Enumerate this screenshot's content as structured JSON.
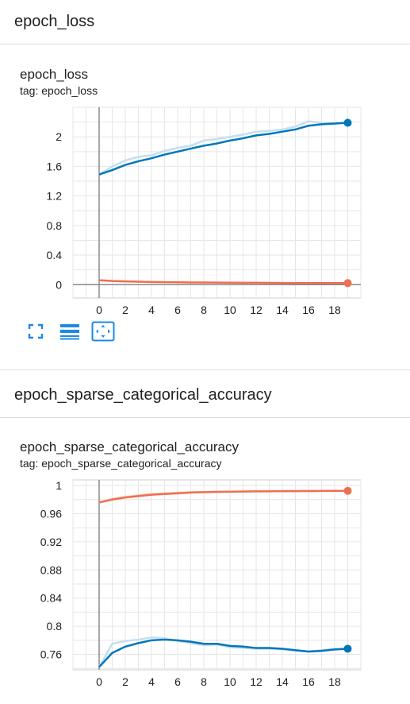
{
  "sections": [
    {
      "header": "epoch_loss",
      "card_title": "epoch_loss",
      "card_tag": "tag: epoch_loss",
      "toolbar": {
        "fullscreen_icon": "fullscreen-icon",
        "data_table_icon": "data-table-icon",
        "fit_domain_icon": "fit-domain-icon"
      }
    },
    {
      "header": "epoch_sparse_categorical_accuracy",
      "card_title": "epoch_sparse_categorical_accuracy",
      "card_tag": "tag: epoch_sparse_categorical_accuracy"
    }
  ],
  "colors": {
    "train": "#0077bb",
    "train_raw": "#c6dff0",
    "validation": "#ee7050",
    "validation_raw": "#f8cbbd",
    "accent_icon": "#1e88e5"
  },
  "chart_data": [
    {
      "type": "line",
      "title": "epoch_loss",
      "xlim": [
        -2,
        20
      ],
      "ylim": [
        -0.18,
        2.4
      ],
      "xticks": [
        "0",
        "2",
        "4",
        "6",
        "8",
        "10",
        "12",
        "14",
        "16",
        "18"
      ],
      "yticks": [
        "0",
        "0.4",
        "0.8",
        "1.2",
        "1.6",
        "2"
      ],
      "xtick_values": [
        0,
        2,
        4,
        6,
        8,
        10,
        12,
        14,
        16,
        18
      ],
      "ytick_values": [
        0,
        0.4,
        0.8,
        1.2,
        1.6,
        2
      ],
      "x": [
        0,
        1,
        2,
        3,
        4,
        5,
        6,
        7,
        8,
        9,
        10,
        11,
        12,
        13,
        14,
        15,
        16,
        17,
        18,
        19
      ],
      "series": [
        {
          "color_key": "train",
          "values": [
            1.49,
            1.55,
            1.62,
            1.67,
            1.71,
            1.76,
            1.8,
            1.84,
            1.88,
            1.91,
            1.95,
            1.98,
            2.02,
            2.04,
            2.07,
            2.1,
            2.15,
            2.17,
            2.18,
            2.19
          ],
          "raw": [
            1.49,
            1.6,
            1.68,
            1.73,
            1.75,
            1.81,
            1.85,
            1.88,
            1.95,
            1.97,
            2.0,
            2.03,
            2.07,
            2.08,
            2.1,
            2.14,
            2.21,
            2.19,
            2.18,
            2.19
          ]
        },
        {
          "color_key": "validation",
          "values": [
            0.06,
            0.05,
            0.045,
            0.04,
            0.037,
            0.034,
            0.032,
            0.03,
            0.029,
            0.028,
            0.027,
            0.026,
            0.025,
            0.024,
            0.023,
            0.022,
            0.022,
            0.021,
            0.021,
            0.021
          ],
          "raw": [
            0.06,
            0.048,
            0.043,
            0.039,
            0.036,
            0.033,
            0.031,
            0.029,
            0.028,
            0.027,
            0.026,
            0.025,
            0.024,
            0.023,
            0.022,
            0.022,
            0.021,
            0.021,
            0.021,
            0.021
          ]
        }
      ]
    },
    {
      "type": "line",
      "title": "epoch_sparse_categorical_accuracy",
      "xlim": [
        -2,
        20
      ],
      "ylim": [
        0.738,
        1.008
      ],
      "xticks": [
        "0",
        "2",
        "4",
        "6",
        "8",
        "10",
        "12",
        "14",
        "16",
        "18"
      ],
      "yticks": [
        "0.76",
        "0.8",
        "0.84",
        "0.88",
        "0.92",
        "0.96",
        "1"
      ],
      "xtick_values": [
        0,
        2,
        4,
        6,
        8,
        10,
        12,
        14,
        16,
        18
      ],
      "ytick_values": [
        0.76,
        0.8,
        0.84,
        0.88,
        0.92,
        0.96,
        1.0
      ],
      "x": [
        0,
        1,
        2,
        3,
        4,
        5,
        6,
        7,
        8,
        9,
        10,
        11,
        12,
        13,
        14,
        15,
        16,
        17,
        18,
        19
      ],
      "series": [
        {
          "color_key": "validation",
          "values": [
            0.976,
            0.98,
            0.983,
            0.985,
            0.987,
            0.988,
            0.989,
            0.99,
            0.9905,
            0.991,
            0.9912,
            0.9915,
            0.9917,
            0.9918,
            0.992,
            0.9921,
            0.9922,
            0.9923,
            0.9924,
            0.9925
          ],
          "raw": [
            0.976,
            0.981,
            0.984,
            0.986,
            0.988,
            0.989,
            0.99,
            0.9905,
            0.991,
            0.9912,
            0.9914,
            0.9916,
            0.9918,
            0.992,
            0.9921,
            0.9922,
            0.9923,
            0.9924,
            0.9925,
            0.9925
          ]
        },
        {
          "color_key": "train",
          "values": [
            0.742,
            0.762,
            0.771,
            0.776,
            0.78,
            0.781,
            0.78,
            0.778,
            0.775,
            0.775,
            0.772,
            0.771,
            0.769,
            0.769,
            0.768,
            0.766,
            0.764,
            0.765,
            0.767,
            0.768
          ],
          "raw": [
            0.742,
            0.775,
            0.779,
            0.781,
            0.784,
            0.783,
            0.779,
            0.776,
            0.773,
            0.774,
            0.77,
            0.769,
            0.768,
            0.768,
            0.767,
            0.765,
            0.764,
            0.766,
            0.768,
            0.768
          ]
        }
      ]
    }
  ]
}
